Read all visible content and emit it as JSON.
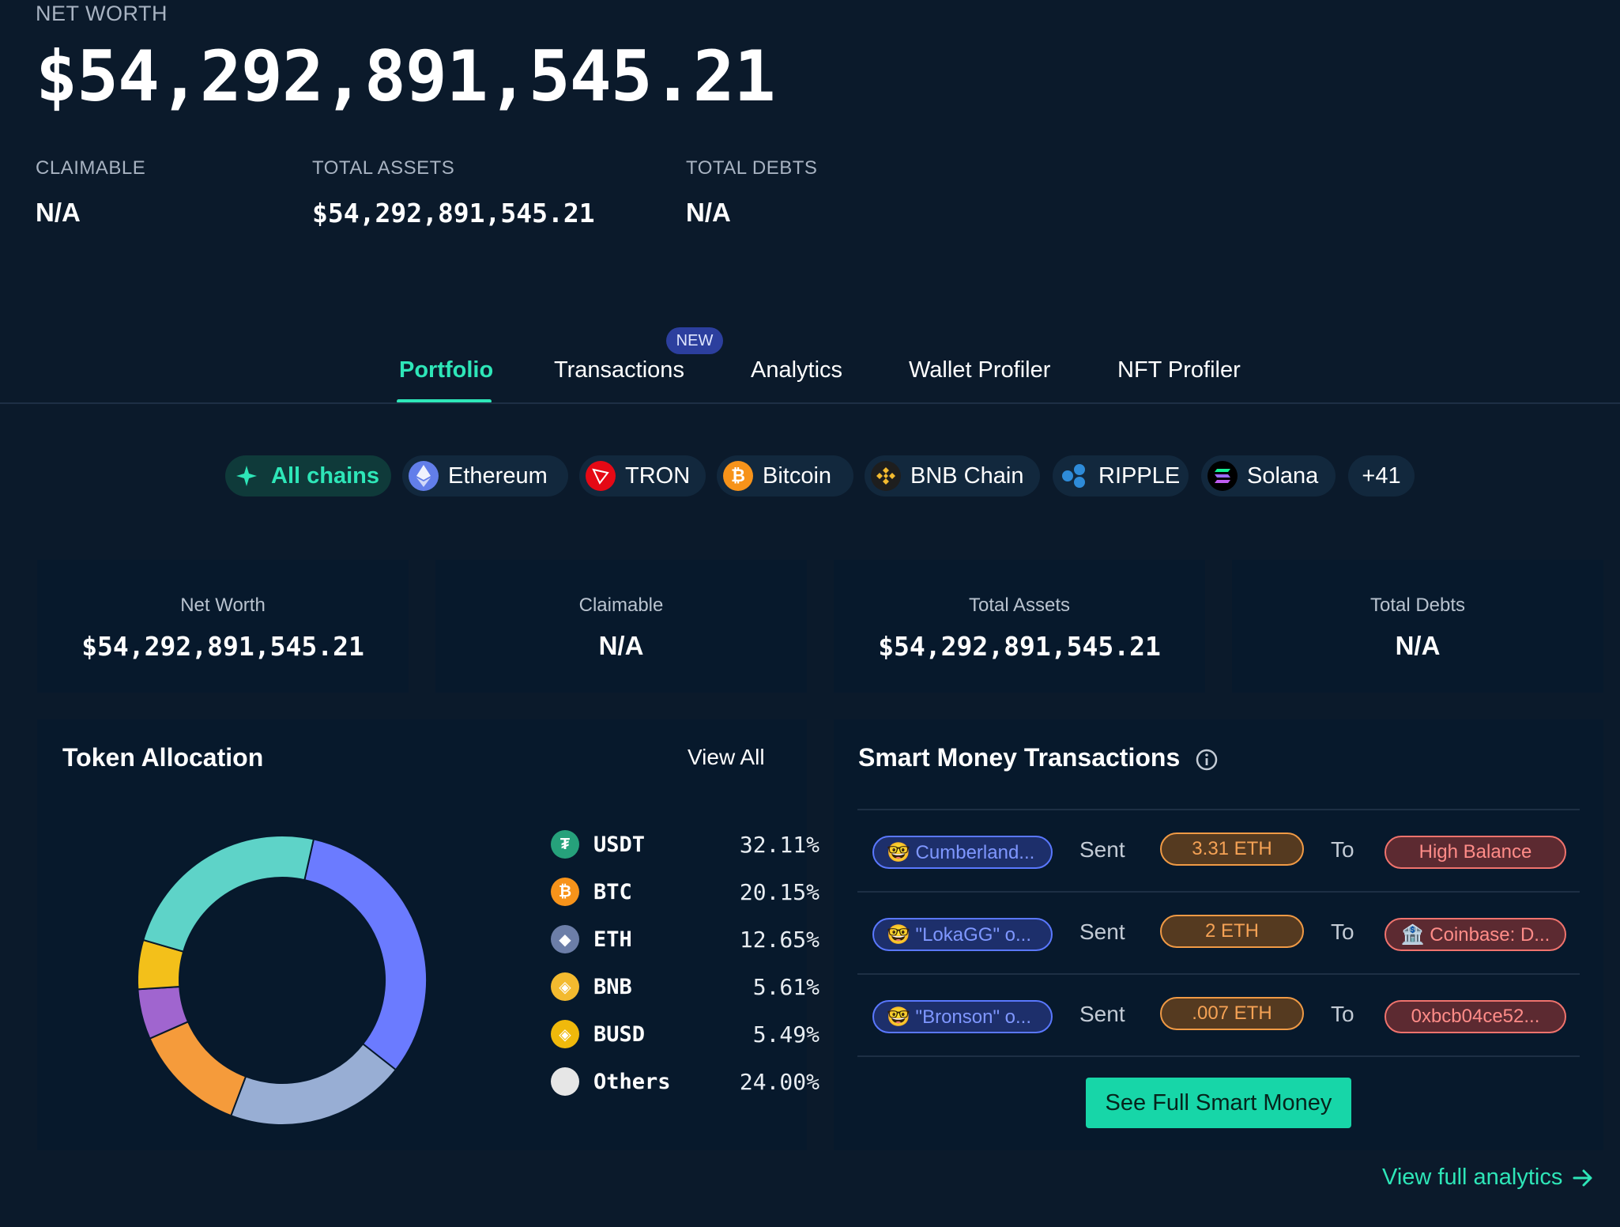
{
  "header": {
    "net_worth_label": "NET WORTH",
    "net_worth_value": "$54,292,891,545.21",
    "claimable_label": "CLAIMABLE",
    "claimable_value": "N/A",
    "total_assets_label": "TOTAL ASSETS",
    "total_assets_value": "$54,292,891,545.21",
    "total_debts_label": "TOTAL DEBTS",
    "total_debts_value": "N/A"
  },
  "tabs": [
    {
      "label": "Portfolio",
      "active": true
    },
    {
      "label": "Transactions",
      "badge": "NEW"
    },
    {
      "label": "Analytics"
    },
    {
      "label": "Wallet Profiler"
    },
    {
      "label": "NFT Profiler"
    }
  ],
  "chains": [
    {
      "label": "All chains",
      "icon": "all-chains-icon",
      "active": true
    },
    {
      "label": "Ethereum",
      "icon": "ethereum-icon"
    },
    {
      "label": "TRON",
      "icon": "tron-icon"
    },
    {
      "label": "Bitcoin",
      "icon": "bitcoin-icon"
    },
    {
      "label": "BNB Chain",
      "icon": "bnb-icon"
    },
    {
      "label": "RIPPLE",
      "icon": "ripple-icon"
    },
    {
      "label": "Solana",
      "icon": "solana-icon"
    },
    {
      "label": "+41"
    }
  ],
  "summary": [
    {
      "label": "Net Worth",
      "value": "$54,292,891,545.21"
    },
    {
      "label": "Claimable",
      "value": "N/A"
    },
    {
      "label": "Total Assets",
      "value": "$54,292,891,545.21"
    },
    {
      "label": "Total Debts",
      "value": "N/A"
    }
  ],
  "token_allocation": {
    "title": "Token Allocation",
    "view_all": "View All"
  },
  "chart_data": {
    "type": "pie",
    "donut": true,
    "categories": [
      "USDT",
      "BTC",
      "ETH",
      "BNB",
      "BUSD",
      "Others"
    ],
    "labels": [
      "32.11%",
      "20.15%",
      "12.65%",
      "5.61%",
      "5.49%",
      "24.00%"
    ],
    "values": [
      32.11,
      20.15,
      12.65,
      5.61,
      5.49,
      24.0
    ],
    "legend_position": "right",
    "segment_colors": [
      "#6b7bff",
      "#98aed4",
      "#f59b3b",
      "#a065cf",
      "#f3c01a",
      "#5ed3c8"
    ],
    "icon_colors": [
      "#26a17b",
      "#f7931a",
      "#6c7ea8",
      "#f3ba2f",
      "#f0b90b",
      "#e6e6e6"
    ]
  },
  "smart_money": {
    "title": "Smart Money Transactions",
    "rows": [
      {
        "from": "🤓 Cumberland...",
        "action": "Sent",
        "amount": "3.31 ETH",
        "to_word": "To",
        "to": "High Balance"
      },
      {
        "from": "🤓 \"LokaGG\" o...",
        "action": "Sent",
        "amount": "2 ETH",
        "to_word": "To",
        "to": "🏦 Coinbase: D..."
      },
      {
        "from": "🤓 \"Bronson\" o...",
        "action": "Sent",
        "amount": ".007 ETH",
        "to_word": "To",
        "to": "0xbcb04ce52..."
      }
    ],
    "button": "See Full Smart Money"
  },
  "footer": {
    "view_full_analytics": "View full analytics"
  }
}
